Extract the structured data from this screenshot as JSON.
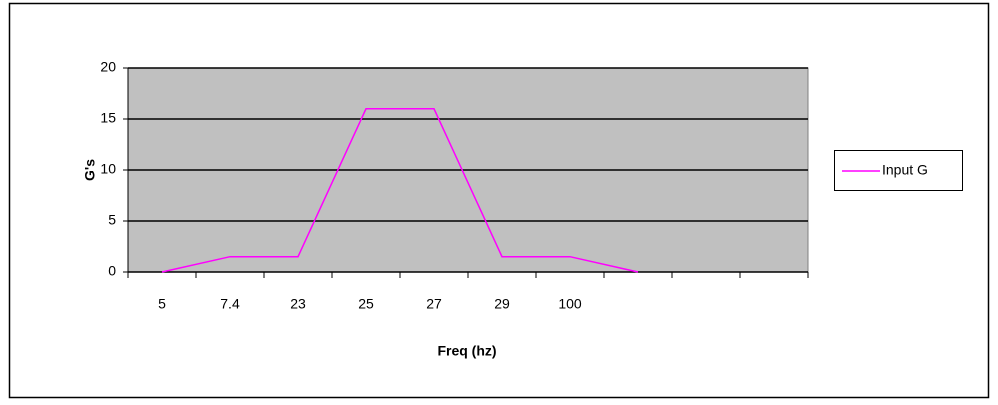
{
  "chart_data": {
    "type": "line",
    "xlabel": "Freq (hz)",
    "ylabel": "G's",
    "categories": [
      5,
      7.4,
      23,
      25,
      27,
      29,
      100,
      null,
      null,
      null
    ],
    "series": [
      {
        "name": "Input G",
        "color": "#ff00ff",
        "values": [
          0,
          1.5,
          1.5,
          16,
          16,
          1.5,
          1.5,
          0,
          null,
          null
        ]
      }
    ],
    "ylim": [
      0,
      20
    ],
    "yticks": [
      0,
      5,
      10,
      15,
      20
    ],
    "grid": true,
    "legend": "right"
  }
}
